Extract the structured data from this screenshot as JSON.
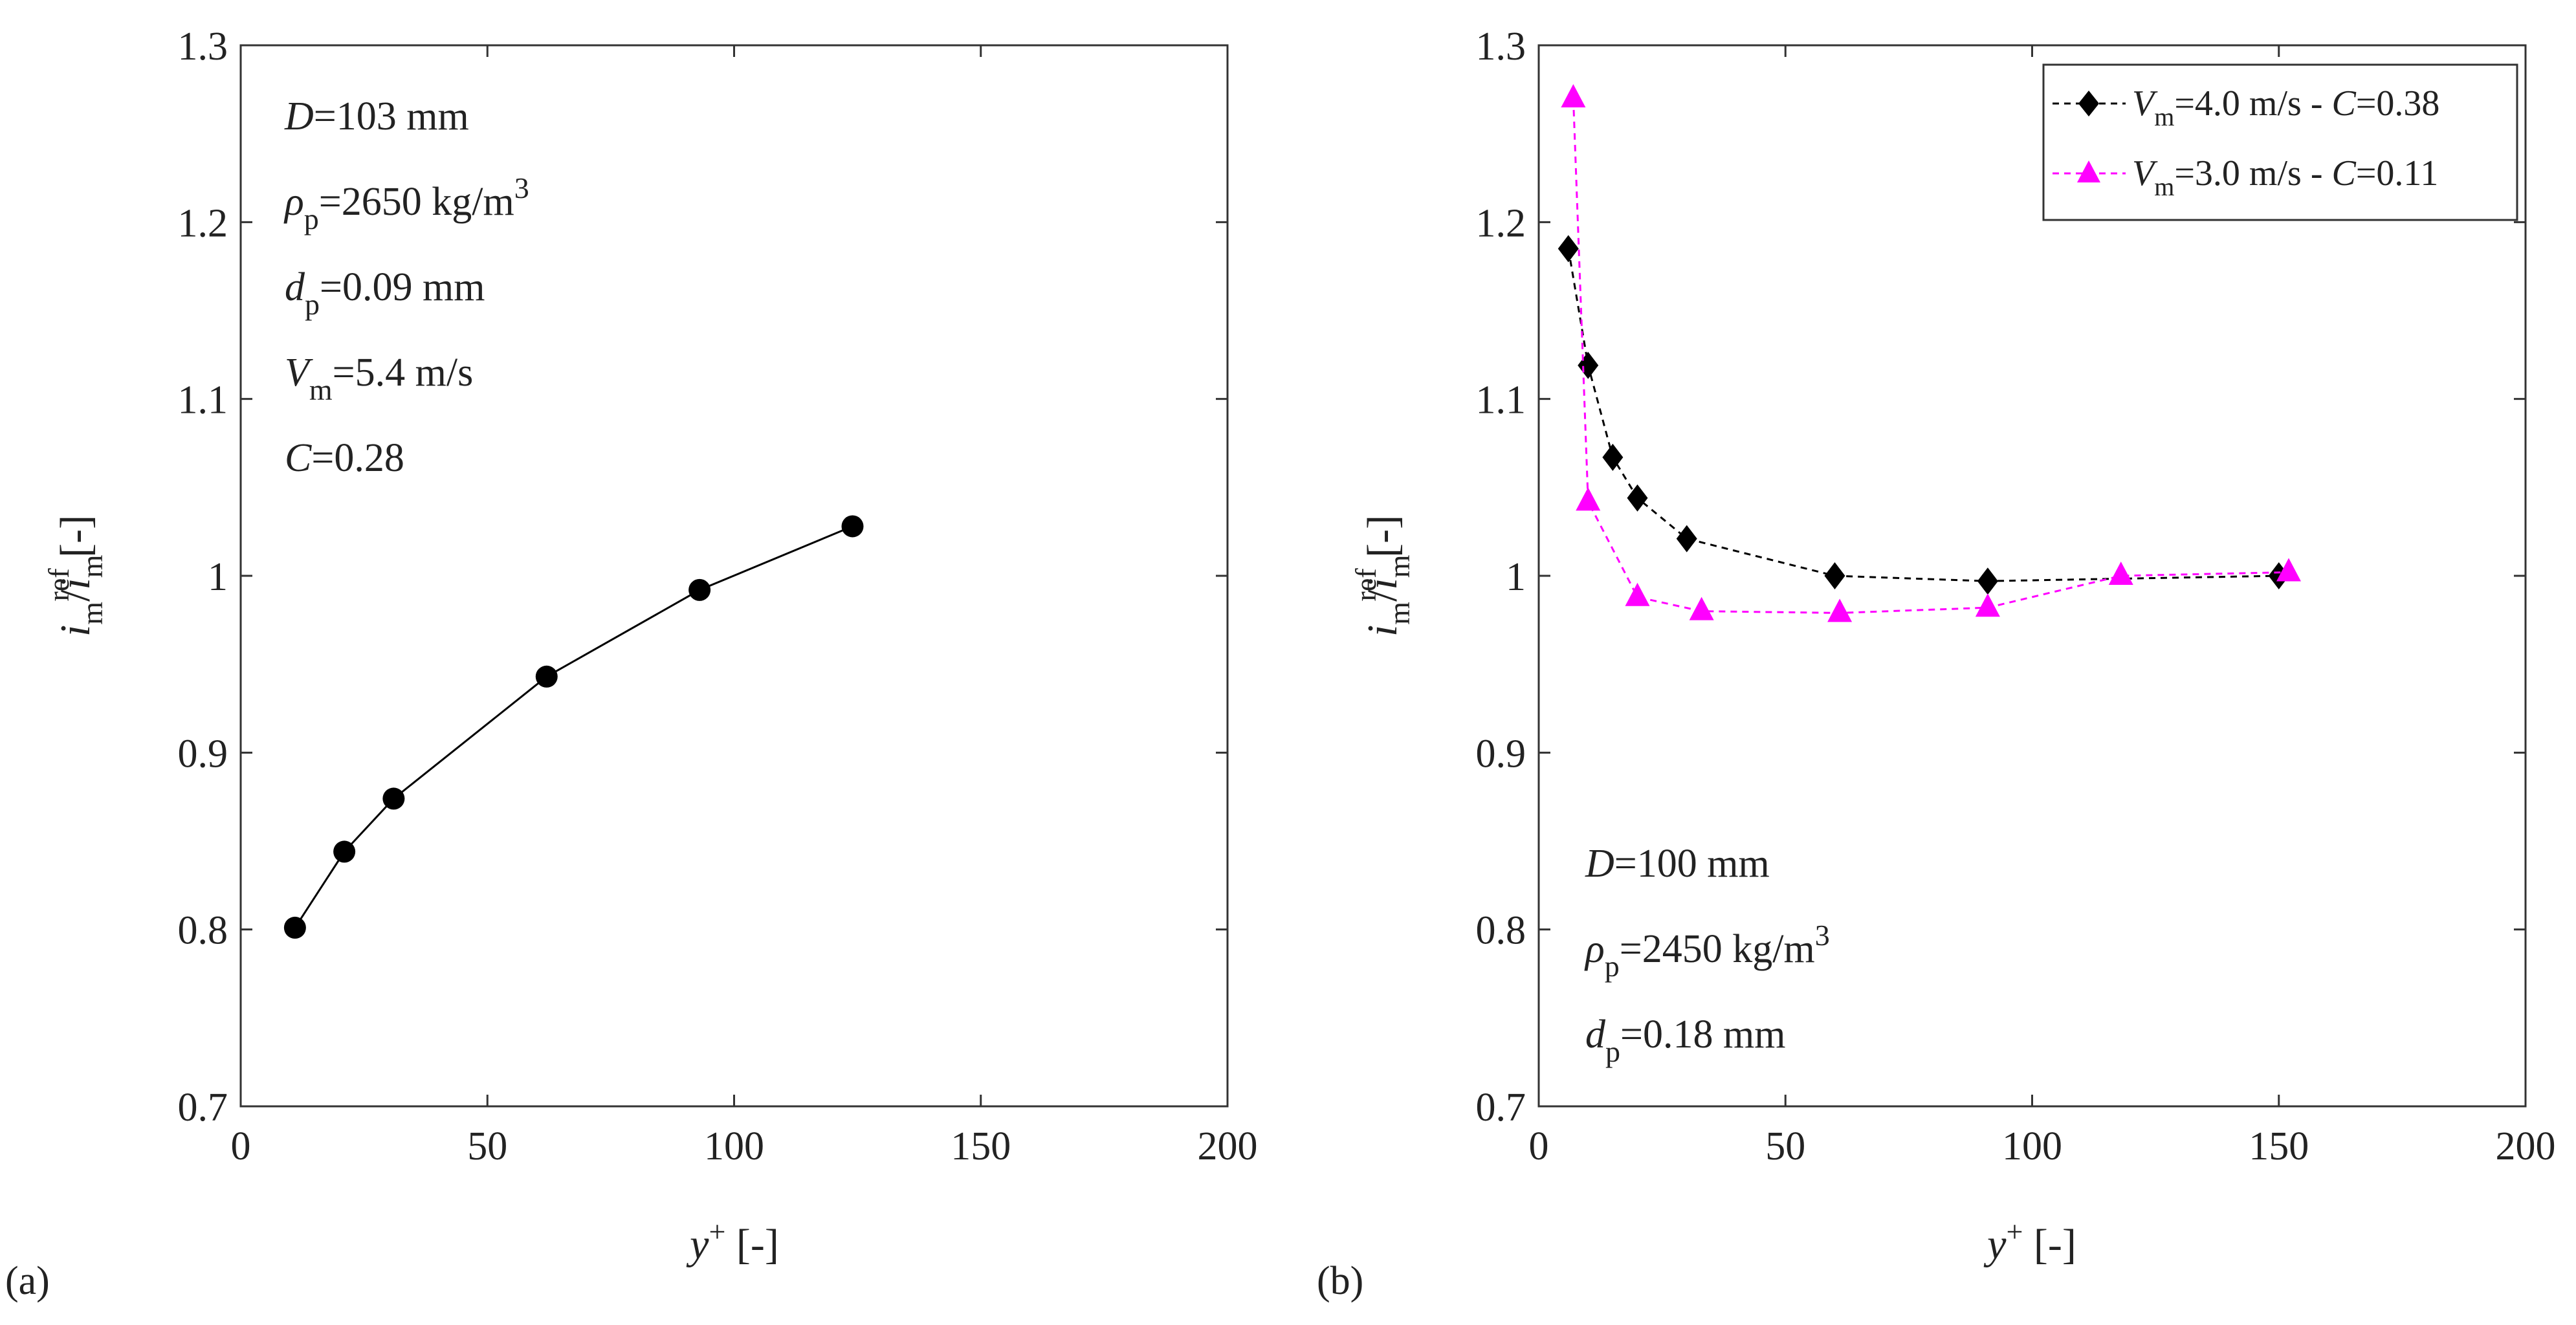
{
  "figure": {
    "panels": [
      "(a)",
      "(b)"
    ]
  },
  "colors": {
    "series_a": "#000000",
    "series_b1": "#000000",
    "series_b2": "#ff00ff",
    "axes": "#333333"
  },
  "chart_data": [
    {
      "type": "line",
      "panel": "(a)",
      "xlabel": {
        "main": "y",
        "sup": "+",
        "unit": " [-]"
      },
      "ylabel": {
        "i1": "i",
        "sub1": "m",
        "slash": "/",
        "i2": "i",
        "sub2": "m",
        "sup2": "ref",
        "unit": " [-]"
      },
      "xlim": [
        0,
        200
      ],
      "ylim": [
        0.7,
        1.3
      ],
      "xticks": [
        0,
        50,
        100,
        150,
        200
      ],
      "yticks": [
        0.7,
        0.8,
        0.9,
        1.0,
        1.1,
        1.2,
        1.3
      ],
      "ytick_labels": [
        "0.7",
        "0.8",
        "0.9",
        "1",
        "1.1",
        "1.2",
        "1.3"
      ],
      "annotations": [
        {
          "var": "D",
          "sub": "",
          "val": "=103 mm",
          "sup": ""
        },
        {
          "var": "ρ",
          "sub": "p",
          "val": "=2650 kg/m",
          "sup": "3"
        },
        {
          "var": "d",
          "sub": "p",
          "val": "=0.09 mm",
          "sup": ""
        },
        {
          "var": "V",
          "sub": "m",
          "val": "=5.4 m/s",
          "sup": ""
        },
        {
          "var": "C",
          "sub": "",
          "val": "=0.28",
          "sup": ""
        }
      ],
      "series": [
        {
          "name": "",
          "marker": "circle",
          "line": "solid",
          "color": "#000000",
          "x": [
            11,
            21,
            31,
            62,
            93,
            124
          ],
          "y": [
            0.801,
            0.844,
            0.874,
            0.943,
            0.992,
            1.028
          ]
        }
      ]
    },
    {
      "type": "line",
      "panel": "(b)",
      "xlabel": {
        "main": "y",
        "sup": "+",
        "unit": " [-]"
      },
      "ylabel": {
        "i1": "i",
        "sub1": "m",
        "slash": "/",
        "i2": "i",
        "sub2": "m",
        "sup2": "ref",
        "unit": " [-]"
      },
      "xlim": [
        0,
        200
      ],
      "ylim": [
        0.7,
        1.3
      ],
      "xticks": [
        0,
        50,
        100,
        150,
        200
      ],
      "yticks": [
        0.7,
        0.8,
        0.9,
        1.0,
        1.1,
        1.2,
        1.3
      ],
      "ytick_labels": [
        "0.7",
        "0.8",
        "0.9",
        "1",
        "1.1",
        "1.2",
        "1.3"
      ],
      "annotations": [
        {
          "var": "D",
          "sub": "",
          "val": "=100 mm",
          "sup": ""
        },
        {
          "var": "ρ",
          "sub": "p",
          "val": "=2450 kg/m",
          "sup": "3"
        },
        {
          "var": "d",
          "sub": "p",
          "val": "=0.18 mm",
          "sup": ""
        }
      ],
      "legend_position": "top-right",
      "series": [
        {
          "name": "",
          "legend": {
            "v": "V",
            "sub": "m",
            "mid": "=4.0 m/s - ",
            "c": "C",
            "tail": "=0.38"
          },
          "marker": "diamond",
          "line": "dashed",
          "color": "#000000",
          "x": [
            6,
            10,
            15,
            20,
            30,
            60,
            91,
            150
          ],
          "y": [
            1.185,
            1.119,
            1.067,
            1.044,
            1.021,
            1.0,
            0.997,
            1.0
          ]
        },
        {
          "name": "",
          "legend": {
            "v": "V",
            "sub": "m",
            "mid": "=3.0 m/s - ",
            "c": "C",
            "tail": "=0.11"
          },
          "marker": "triangle",
          "line": "dashed",
          "color": "#ff00ff",
          "x": [
            7,
            10,
            20,
            33,
            61,
            91,
            118,
            152
          ],
          "y": [
            1.27,
            1.042,
            0.988,
            0.98,
            0.979,
            0.982,
            1.0,
            1.002
          ]
        }
      ]
    }
  ]
}
